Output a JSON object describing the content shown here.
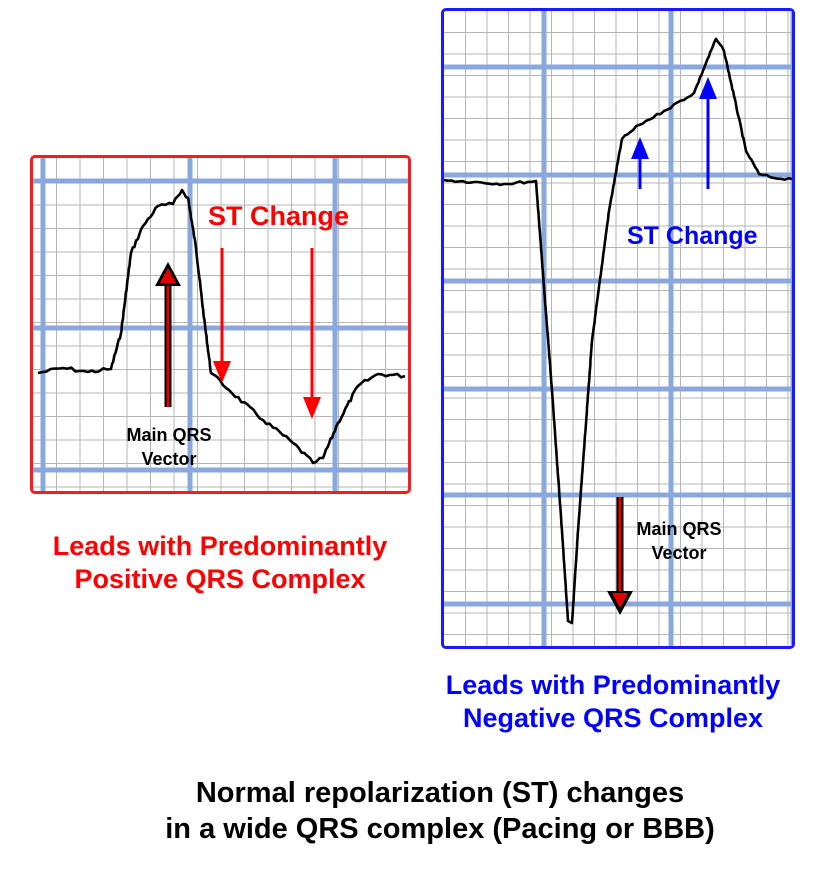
{
  "colors": {
    "positive": "#ff0000",
    "negative": "#0000ff",
    "grid_minor": "#b5b5b5",
    "grid_major": "#8aa8de",
    "trace": "#000000"
  },
  "left": {
    "st_label": "ST Change",
    "vector_label_1": "Main QRS",
    "vector_label_2": "Vector",
    "caption_1": "Leads with Predominantly",
    "caption_2": "Positive QRS Complex"
  },
  "right": {
    "st_label": "ST Change",
    "vector_label_1": "Main QRS",
    "vector_label_2": "Vector",
    "caption_1": "Leads with Predominantly",
    "caption_2": "Negative QRS Complex"
  },
  "footer": {
    "line_1": "Normal repolarization (ST) changes",
    "line_2": "in a wide QRS complex (Pacing or BBB)"
  }
}
